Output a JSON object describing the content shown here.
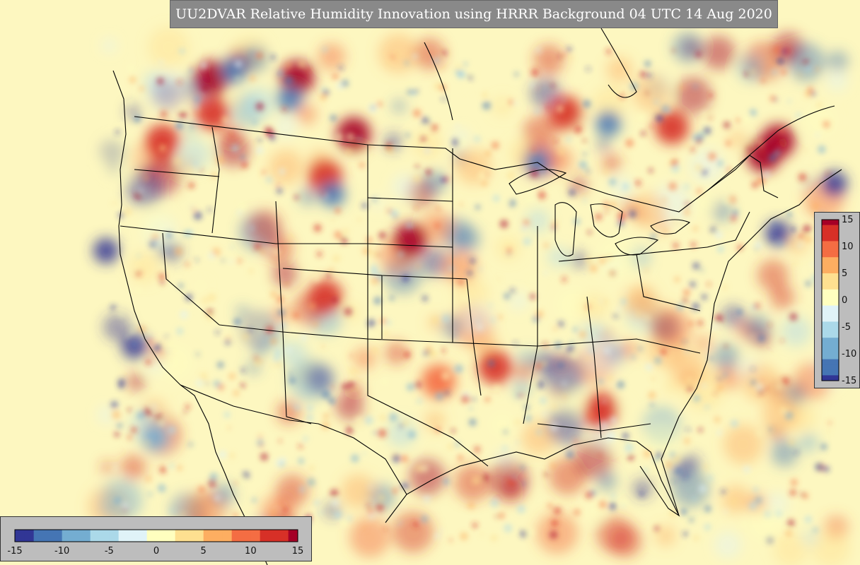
{
  "title": "UU2DVAR Relative Humidity Innovation using HRRR Background 04 UTC 14 Aug 2020",
  "colorbar": {
    "min": -15,
    "max": 15,
    "vertical_ticks": [
      "15",
      "10",
      "5",
      "0",
      "-5",
      "-10",
      "-15"
    ],
    "horizontal_ticks": [
      "-15",
      "-10",
      "-5",
      "0",
      "5",
      "10",
      "15"
    ],
    "colors": [
      "#313695",
      "#4575b4",
      "#74add1",
      "#abd9e9",
      "#e0f3f8",
      "#ffffbf",
      "#fee090",
      "#fdae61",
      "#f46d43",
      "#d73027",
      "#a50026"
    ]
  },
  "map": {
    "background_color": "#fdf7c0",
    "boundary_color": "#000000"
  }
}
